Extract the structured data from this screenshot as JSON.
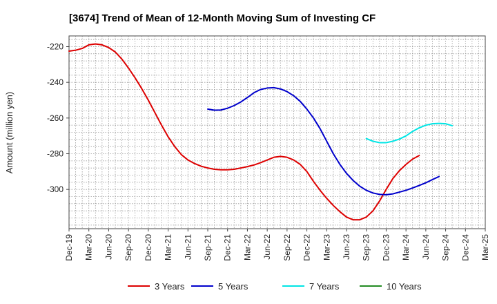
{
  "chart_data": {
    "type": "line",
    "title": "[3674]  Trend of Mean of 12-Month Moving Sum of Investing CF",
    "xlabel": "",
    "ylabel": "Amount (million yen)",
    "ylim": [
      -322,
      -214
    ],
    "yticks": [
      -220,
      -240,
      -260,
      -280,
      -300
    ],
    "ytick_labels": [
      "-220",
      "-240",
      "-260",
      "-280",
      "-300"
    ],
    "x_start": "Dec-19",
    "x_end": "Mar-25",
    "xtick_labels": [
      "Dec-19",
      "Mar-20",
      "Jun-20",
      "Sep-20",
      "Dec-20",
      "Mar-21",
      "Jun-21",
      "Sep-21",
      "Dec-21",
      "Mar-22",
      "Jun-22",
      "Sep-22",
      "Dec-22",
      "Mar-23",
      "Jun-23",
      "Sep-23",
      "Dec-23",
      "Mar-24",
      "Jun-24",
      "Sep-24",
      "Dec-24",
      "Mar-25"
    ],
    "series": [
      {
        "name": "3 Years",
        "color": "#dd0000",
        "values": [
          [
            0,
            -222.5
          ],
          [
            1,
            -222
          ],
          [
            2,
            -221
          ],
          [
            3,
            -219
          ],
          [
            4,
            -218.5
          ],
          [
            5,
            -219
          ],
          [
            6,
            -220.5
          ],
          [
            7,
            -223
          ],
          [
            8,
            -227
          ],
          [
            9,
            -232
          ],
          [
            10,
            -237.5
          ],
          [
            11,
            -243.5
          ],
          [
            12,
            -250
          ],
          [
            13,
            -257
          ],
          [
            14,
            -264
          ],
          [
            15,
            -270.5
          ],
          [
            16,
            -276
          ],
          [
            17,
            -280.5
          ],
          [
            18,
            -283.5
          ],
          [
            19,
            -285.5
          ],
          [
            20,
            -287
          ],
          [
            21,
            -288
          ],
          [
            22,
            -288.7
          ],
          [
            23,
            -289
          ],
          [
            24,
            -289
          ],
          [
            25,
            -288.7
          ],
          [
            26,
            -288
          ],
          [
            27,
            -287.2
          ],
          [
            28,
            -286.3
          ],
          [
            29,
            -285
          ],
          [
            30,
            -283.5
          ],
          [
            31,
            -282
          ],
          [
            32,
            -281.5
          ],
          [
            33,
            -282
          ],
          [
            34,
            -283.5
          ],
          [
            35,
            -286
          ],
          [
            36,
            -290
          ],
          [
            37,
            -295.5
          ],
          [
            38,
            -300.5
          ],
          [
            39,
            -305
          ],
          [
            40,
            -309
          ],
          [
            41,
            -312.5
          ],
          [
            42,
            -315.5
          ],
          [
            43,
            -317
          ],
          [
            44,
            -317
          ],
          [
            45,
            -315.5
          ],
          [
            46,
            -312
          ],
          [
            47,
            -306.5
          ],
          [
            48,
            -300
          ],
          [
            49,
            -294
          ],
          [
            50,
            -289.5
          ],
          [
            51,
            -286
          ],
          [
            52,
            -283
          ],
          [
            53,
            -281
          ]
        ]
      },
      {
        "name": "5 Years",
        "color": "#0000cc",
        "values": [
          [
            21,
            -255
          ],
          [
            22,
            -255.6
          ],
          [
            23,
            -255.5
          ],
          [
            24,
            -254.5
          ],
          [
            25,
            -253
          ],
          [
            26,
            -251
          ],
          [
            27,
            -248.5
          ],
          [
            28,
            -245.8
          ],
          [
            29,
            -244
          ],
          [
            30,
            -243.2
          ],
          [
            31,
            -243
          ],
          [
            32,
            -243.7
          ],
          [
            33,
            -245.2
          ],
          [
            34,
            -247.5
          ],
          [
            35,
            -250.7
          ],
          [
            36,
            -255
          ],
          [
            37,
            -260
          ],
          [
            38,
            -266
          ],
          [
            39,
            -273
          ],
          [
            40,
            -280
          ],
          [
            41,
            -286
          ],
          [
            42,
            -291
          ],
          [
            43,
            -295
          ],
          [
            44,
            -298.2
          ],
          [
            45,
            -300.5
          ],
          [
            46,
            -302
          ],
          [
            47,
            -302.8
          ],
          [
            48,
            -303
          ],
          [
            49,
            -302.5
          ],
          [
            50,
            -301.5
          ],
          [
            51,
            -300.5
          ],
          [
            52,
            -299.2
          ],
          [
            53,
            -297.8
          ],
          [
            54,
            -296.3
          ],
          [
            55,
            -294.5
          ],
          [
            56,
            -292.8
          ]
        ]
      },
      {
        "name": "7 Years",
        "color": "#00e5e5",
        "values": [
          [
            45,
            -271.5
          ],
          [
            46,
            -273
          ],
          [
            47,
            -273.8
          ],
          [
            48,
            -273.8
          ],
          [
            49,
            -273
          ],
          [
            50,
            -271.8
          ],
          [
            51,
            -270
          ],
          [
            52,
            -267.5
          ],
          [
            53,
            -265.5
          ],
          [
            54,
            -264
          ],
          [
            55,
            -263.2
          ],
          [
            56,
            -263
          ],
          [
            57,
            -263.2
          ],
          [
            58,
            -264.3
          ]
        ]
      },
      {
        "name": "10 Years",
        "color": "#228b22",
        "values": []
      }
    ],
    "legend_position": "bottom-center",
    "grid": true
  }
}
